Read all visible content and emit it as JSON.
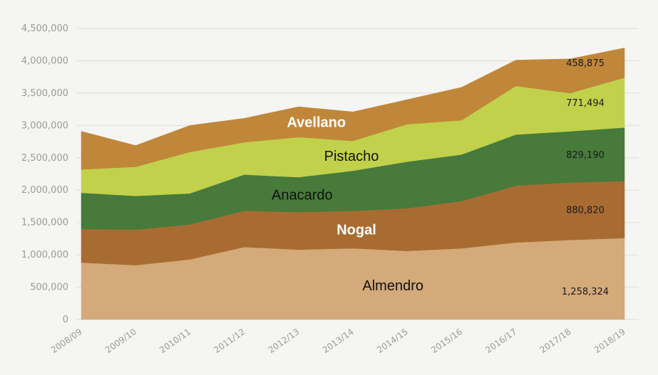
{
  "chart_data": {
    "type": "area",
    "stacked": true,
    "categories": [
      "2008/09",
      "2009/10",
      "2010/11",
      "2011/12",
      "2012/13",
      "2013/14",
      "2014/15",
      "2015/16",
      "2016/17",
      "2017/18",
      "2018/19"
    ],
    "ylim": [
      0,
      4500000
    ],
    "yticks": [
      "0",
      "500,000",
      "1,000,000",
      "1,500,000",
      "2,000,000",
      "2,500,000",
      "3,000,000",
      "3,500,000",
      "4,000,000",
      "4,500,000"
    ],
    "grid": true,
    "series": [
      {
        "name": "Almendro",
        "color": "#d4aa7a",
        "label_color": "#111111",
        "label_bold": false,
        "values": [
          880000,
          840000,
          930000,
          1120000,
          1080000,
          1100000,
          1060000,
          1100000,
          1190000,
          1230000,
          1258324
        ]
      },
      {
        "name": "Nogal",
        "color": "#a86c33",
        "label_color": "#ffffff",
        "label_bold": true,
        "values": [
          520000,
          550000,
          540000,
          560000,
          580000,
          580000,
          660000,
          730000,
          880000,
          890000,
          880820
        ]
      },
      {
        "name": "Anacardo",
        "color": "#477a3b",
        "label_color": "#111111",
        "label_bold": false,
        "values": [
          560000,
          520000,
          480000,
          560000,
          540000,
          620000,
          720000,
          720000,
          790000,
          790000,
          829190
        ]
      },
      {
        "name": "Pistacho",
        "color": "#c2d14b",
        "label_color": "#111111",
        "label_bold": false,
        "values": [
          360000,
          450000,
          640000,
          500000,
          620000,
          460000,
          580000,
          530000,
          750000,
          590000,
          771494
        ]
      },
      {
        "name": "Avellano",
        "color": "#c0873a",
        "label_color": "#ffffff",
        "label_bold": true,
        "values": [
          590000,
          330000,
          410000,
          370000,
          470000,
          450000,
          380000,
          510000,
          400000,
          530000,
          458875
        ]
      }
    ],
    "value_labels": [
      "1,258,324",
      "880,820",
      "829,190",
      "771,494",
      "458,875"
    ]
  }
}
